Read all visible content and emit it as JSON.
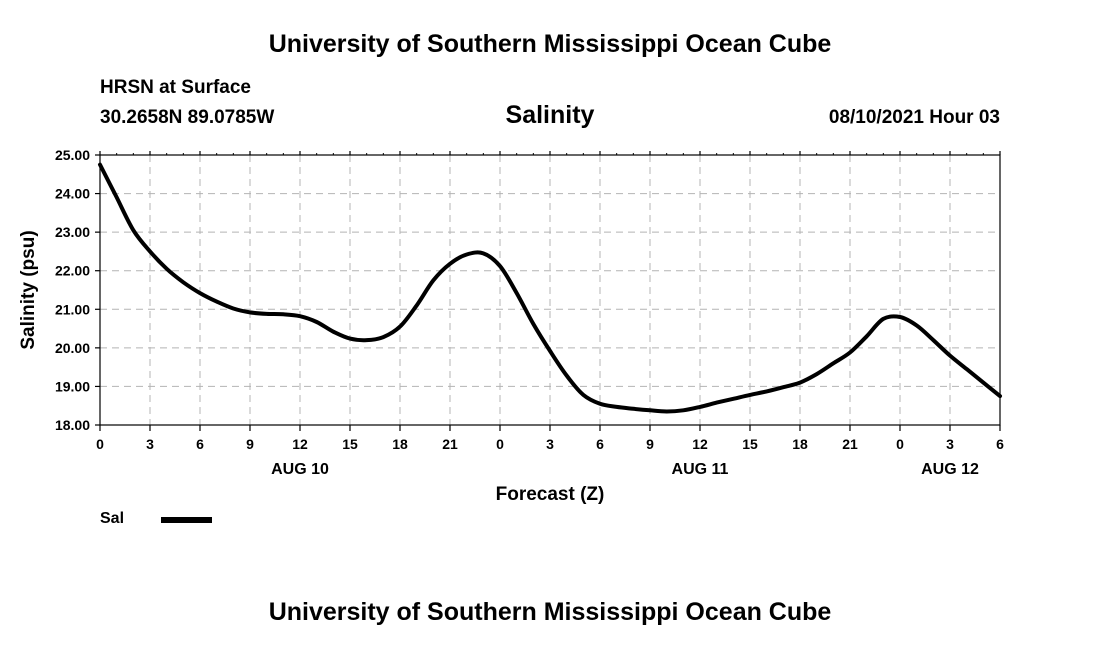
{
  "header": {
    "top_title": "University of Southern Mississippi Ocean Cube",
    "station": "HRSN at Surface",
    "coords": "30.2658N  89.0785W",
    "parameter": "Salinity",
    "datetime": "08/10/2021 Hour 03",
    "bottom_title": "University of Southern Mississippi Ocean Cube"
  },
  "legend": {
    "label": "Sal",
    "color": "#000000"
  },
  "chart_data": {
    "type": "line",
    "title": "Salinity",
    "xlabel": "Forecast (Z)",
    "ylabel": "Salinity (psu)",
    "xlim": [
      0,
      54
    ],
    "ylim": [
      18.0,
      25.0
    ],
    "grid": true,
    "x_ticks": [
      0,
      3,
      6,
      9,
      12,
      15,
      18,
      21,
      24,
      27,
      30,
      33,
      36,
      39,
      42,
      45,
      48,
      51,
      54
    ],
    "x_tick_labels": [
      "0",
      "3",
      "6",
      "9",
      "12",
      "15",
      "18",
      "21",
      "0",
      "3",
      "6",
      "9",
      "12",
      "15",
      "18",
      "21",
      "0",
      "3",
      "6"
    ],
    "day_labels": [
      {
        "x": 12,
        "label": "AUG 10"
      },
      {
        "x": 36,
        "label": "AUG 11"
      },
      {
        "x": 51,
        "label": "AUG 12"
      }
    ],
    "y_ticks": [
      18.0,
      19.0,
      20.0,
      21.0,
      22.0,
      23.0,
      24.0,
      25.0
    ],
    "y_tick_labels": [
      "18.00",
      "19.00",
      "20.00",
      "21.00",
      "22.00",
      "23.00",
      "24.00",
      "25.00"
    ],
    "series": [
      {
        "name": "Sal",
        "color": "#000000",
        "x": [
          0,
          1,
          2,
          3,
          4,
          5,
          6,
          7,
          8,
          9,
          10,
          11,
          12,
          13,
          14,
          15,
          16,
          17,
          18,
          19,
          20,
          21,
          22,
          23,
          24,
          25,
          26,
          27,
          28,
          29,
          30,
          31,
          32,
          33,
          34,
          35,
          36,
          37,
          38,
          39,
          40,
          41,
          42,
          43,
          44,
          45,
          46,
          47,
          48,
          49,
          50,
          51,
          52,
          53,
          54
        ],
        "values": [
          24.75,
          23.9,
          23.05,
          22.5,
          22.05,
          21.7,
          21.42,
          21.2,
          21.02,
          20.92,
          20.88,
          20.87,
          20.82,
          20.67,
          20.42,
          20.24,
          20.2,
          20.28,
          20.55,
          21.1,
          21.75,
          22.18,
          22.42,
          22.45,
          22.12,
          21.42,
          20.62,
          19.92,
          19.28,
          18.78,
          18.55,
          18.47,
          18.42,
          18.38,
          18.35,
          18.38,
          18.47,
          18.58,
          18.68,
          18.78,
          18.87,
          18.98,
          19.1,
          19.32,
          19.6,
          19.88,
          20.3,
          20.75,
          20.8,
          20.58,
          20.2,
          19.8,
          19.45,
          19.1,
          18.75
        ]
      }
    ]
  }
}
